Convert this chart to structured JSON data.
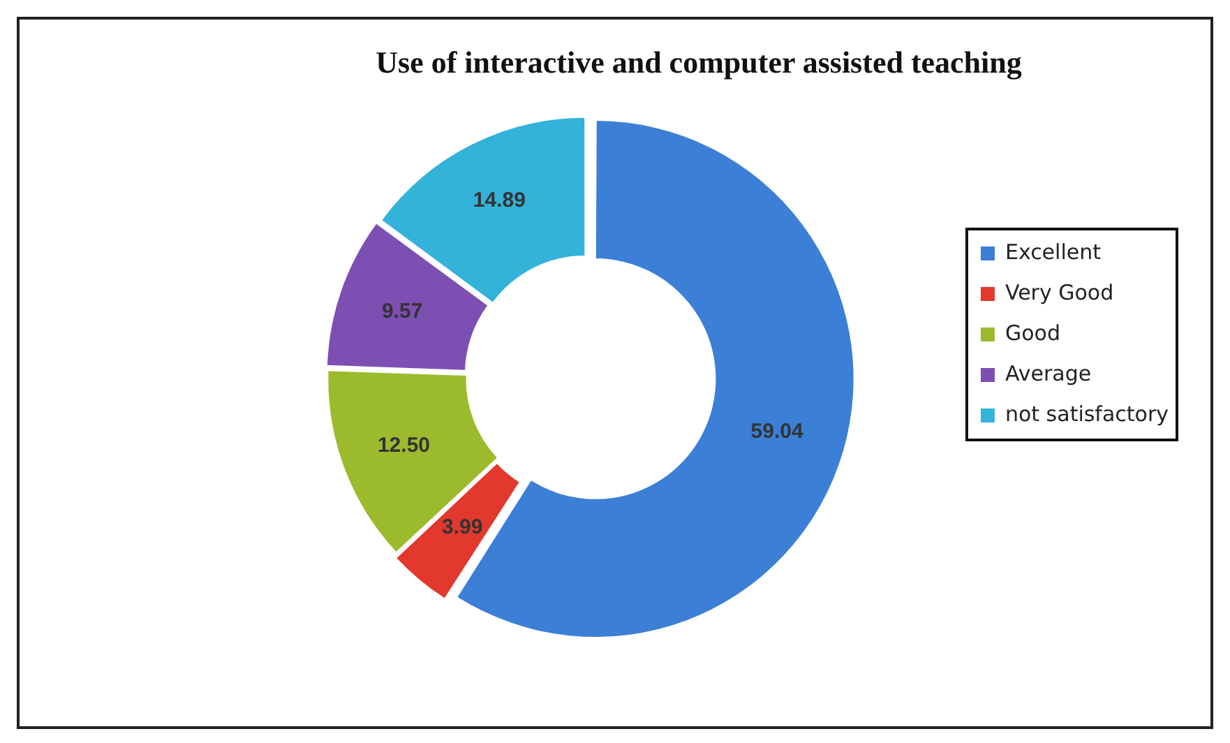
{
  "chart_data": {
    "type": "donut",
    "title": "Use of interactive and computer assisted teaching",
    "categories": [
      "Excellent",
      "Very Good",
      "Good",
      "Average",
      "not satisfactory"
    ],
    "values": [
      59.04,
      3.99,
      12.5,
      9.57,
      14.89
    ],
    "value_labels": [
      "59.04",
      "3.99",
      "12.50",
      "9.57",
      "14.89"
    ],
    "colors": [
      "#3b7fd6",
      "#e2382d",
      "#9cbb2c",
      "#7d4fb3",
      "#33b2da"
    ],
    "legend": "right"
  }
}
